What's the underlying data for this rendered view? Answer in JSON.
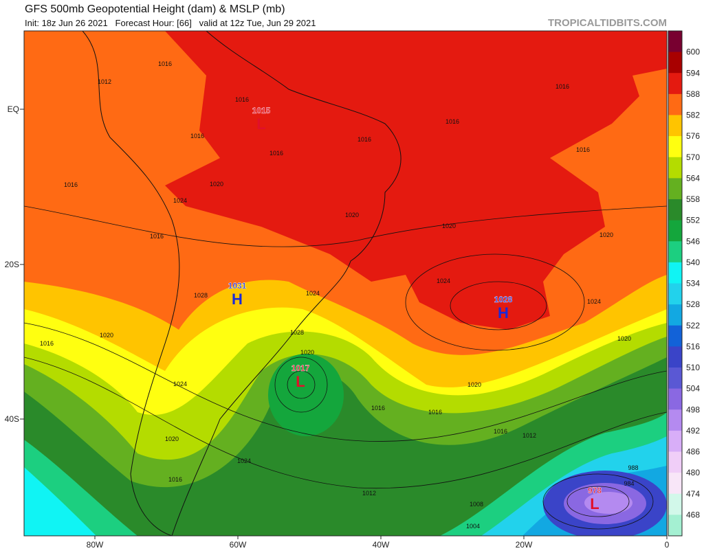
{
  "header": {
    "title": "GFS 500mb Geopotential Height (dam) & MSLP (mb)",
    "subtitle": "Init: 18z Jun 26 2021   Forecast Hour: [66]   valid at 12z Tue, Jun 29 2021",
    "credit": "TROPICALTIDBITS.COM"
  },
  "map": {
    "lat_labels": [
      "EQ",
      "20S",
      "40S"
    ],
    "lon_labels": [
      "80W",
      "60W",
      "40W",
      "20W",
      "0"
    ],
    "centers": [
      {
        "symbol": "L",
        "pressure": "1015"
      },
      {
        "symbol": "H",
        "pressure": "1031"
      },
      {
        "symbol": "H",
        "pressure": "1028"
      },
      {
        "symbol": "L",
        "pressure": "1017"
      },
      {
        "symbol": "L",
        "pressure": "978"
      }
    ],
    "isobar_labels": [
      "1016",
      "1012",
      "1016",
      "1016",
      "1016",
      "1016",
      "1020",
      "1024",
      "1016",
      "1016",
      "1016",
      "1016",
      "1016",
      "1020",
      "1020",
      "1020",
      "1024",
      "1024",
      "1028",
      "1024",
      "1020",
      "1016",
      "1028",
      "1020",
      "1024",
      "1020",
      "1020",
      "1016",
      "1016",
      "1016",
      "1012",
      "1020",
      "1024",
      "1016",
      "1012",
      "1008",
      "1004",
      "988",
      "984"
    ]
  },
  "colorbar": {
    "labels": [
      "600",
      "594",
      "588",
      "582",
      "576",
      "570",
      "564",
      "558",
      "552",
      "546",
      "540",
      "534",
      "528",
      "522",
      "516",
      "510",
      "504",
      "498",
      "492",
      "486",
      "480",
      "474",
      "468"
    ],
    "colors": [
      "#780030",
      "#a80000",
      "#e41a10",
      "#ff6a14",
      "#ffc400",
      "#ffff10",
      "#b4dc00",
      "#64b020",
      "#2a8a2a",
      "#14a63c",
      "#1ccf80",
      "#10f4f4",
      "#22d2ec",
      "#12a8e2",
      "#1262d8",
      "#3a44c8",
      "#5a58d4",
      "#8a68e2",
      "#b48af0",
      "#d8aef8",
      "#f0cef8",
      "#f8e6f8",
      "#d2f8ea",
      "#a4f0d2"
    ]
  }
}
